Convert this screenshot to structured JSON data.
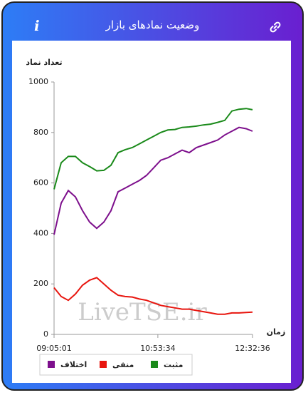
{
  "header": {
    "title": "وضعیت نمادهای بازار",
    "info": "i"
  },
  "chart_data": {
    "type": "line",
    "y_label": "تعداد نماد",
    "x_label": "زمان",
    "watermark": "LiveTSE.ir",
    "x": [
      32701,
      33147,
      33594,
      34040,
      34487,
      34933,
      35379,
      35826,
      36272,
      36719,
      37165,
      37611,
      38058,
      38504,
      38951,
      39397,
      39843,
      40290,
      40736,
      41183,
      41629,
      42075,
      42522,
      42968,
      43415,
      43861,
      44307,
      44754,
      45156
    ],
    "series": [
      {
        "name": "مثبت",
        "color": "#1a8a1a",
        "values": [
          575,
          680,
          705,
          705,
          680,
          665,
          648,
          650,
          670,
          720,
          732,
          740,
          755,
          770,
          785,
          800,
          810,
          812,
          820,
          822,
          825,
          830,
          833,
          840,
          848,
          885,
          892,
          895,
          890
        ]
      },
      {
        "name": "منفی",
        "color": "#e8150e",
        "values": [
          185,
          150,
          135,
          160,
          195,
          215,
          225,
          200,
          175,
          155,
          150,
          148,
          140,
          135,
          125,
          115,
          110,
          105,
          100,
          100,
          95,
          90,
          85,
          80,
          80,
          85,
          85,
          87,
          88
        ]
      },
      {
        "name": "اختلاف",
        "color": "#7d0f8c",
        "values": [
          395,
          520,
          570,
          545,
          490,
          445,
          420,
          445,
          490,
          565,
          580,
          595,
          610,
          630,
          660,
          690,
          700,
          715,
          730,
          720,
          740,
          750,
          760,
          770,
          790,
          805,
          820,
          815,
          805
        ]
      }
    ],
    "xlim": [
      32701,
      45156
    ],
    "xticks": [
      {
        "value": 32701,
        "label": "09:05:01"
      },
      {
        "value": 39214,
        "label": "10:53:34"
      },
      {
        "value": 45156,
        "label": "12:32:36"
      }
    ],
    "ylim": [
      0,
      1000
    ],
    "yticks": [
      0,
      200,
      400,
      600,
      800,
      1000
    ],
    "grid": false
  }
}
